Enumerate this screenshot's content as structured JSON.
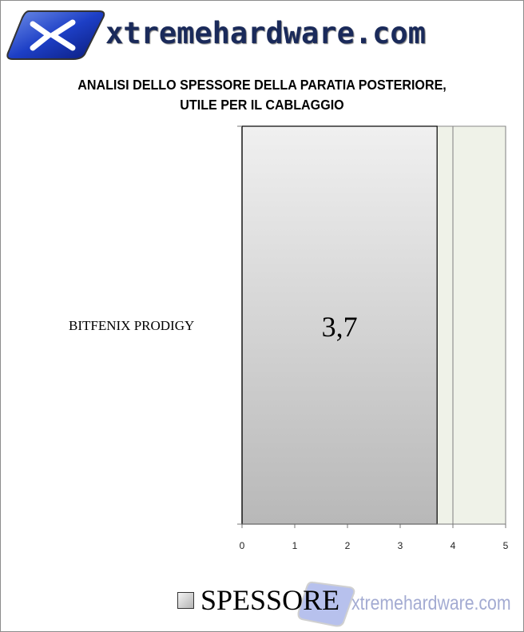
{
  "logo": {
    "text": "xtremehardware.com"
  },
  "chart_data": {
    "type": "bar",
    "orientation": "horizontal",
    "title": "ANALISI DELLO SPESSORE DELLA PARATIA POSTERIORE, UTILE PER IL CABLAGGIO",
    "title_lines": [
      "ANALISI DELLO SPESSORE DELLA PARATIA POSTERIORE,",
      "UTILE PER IL CABLAGGIO"
    ],
    "categories": [
      "BITFENIX PRODIGY"
    ],
    "series": [
      {
        "name": "SPESSORE",
        "values": [
          3.7
        ]
      }
    ],
    "data_labels": [
      "3,7"
    ],
    "xlim": [
      0,
      5
    ],
    "x_ticks": [
      "0",
      "1",
      "2",
      "3",
      "4",
      "5"
    ],
    "grid": "vertical major lines",
    "legend": "bottom",
    "colors": {
      "bar_top": "#f0f0f0",
      "bar_bottom": "#b8b8b8",
      "plot_bg": "#eff2e8",
      "grid": "#7f7f7f"
    }
  },
  "watermark": {
    "text": "xtremehardware.com"
  }
}
